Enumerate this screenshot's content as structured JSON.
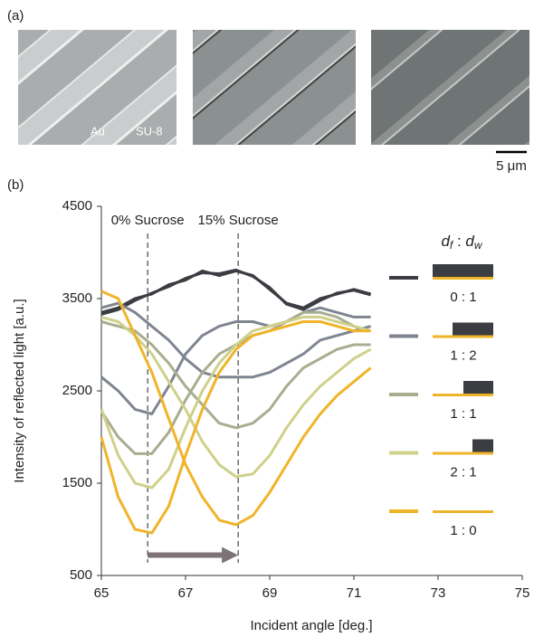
{
  "panel_labels": [
    "(a)",
    "(b)"
  ],
  "image_labels": [
    "Au",
    "SU-8"
  ],
  "scale_bar": "5 μm",
  "chart_data": {
    "type": "line",
    "xlabel": "Incident angle [deg.]",
    "ylabel": "Intensity of reflected light [a.u.]",
    "legend_title": [
      "d",
      "f",
      " : ",
      "d",
      "w"
    ],
    "annotations": [
      {
        "text": "0% Sucrose",
        "x": 66.1
      },
      {
        "text": "15% Sucrose",
        "x": 68.25
      }
    ],
    "arrow": {
      "from": 66.1,
      "to": 68.25,
      "y": 720,
      "color": "#7d7377"
    },
    "xlim": [
      65,
      75
    ],
    "xticks": [
      65,
      67,
      69,
      71,
      73,
      75
    ],
    "ylim": [
      500,
      4500
    ],
    "yticks": [
      500,
      1500,
      2500,
      3500,
      4500
    ],
    "x": [
      65,
      65.4,
      65.8,
      66.2,
      66.6,
      67.0,
      67.4,
      67.8,
      68.2,
      68.6,
      69.0,
      69.4,
      69.8,
      70.2,
      70.6,
      71.0,
      71.4
    ],
    "series": [
      {
        "name": "0 : 1",
        "color": "#3b3d42",
        "curves": [
          [
            3350,
            3400,
            3500,
            3550,
            3650,
            3700,
            3800,
            3750,
            3800,
            3750,
            3600,
            3450,
            3400,
            3500,
            3550,
            3600,
            3550
          ],
          [
            3330,
            3380,
            3480,
            3560,
            3630,
            3720,
            3780,
            3770,
            3810,
            3740,
            3620,
            3440,
            3380,
            3480,
            3560,
            3590,
            3540
          ]
        ]
      },
      {
        "name": "1 : 2",
        "color": "#7f8591",
        "curves": [
          [
            2650,
            2500,
            2300,
            2250,
            2550,
            2900,
            3100,
            3200,
            3250,
            3250,
            3200,
            3250,
            3350,
            3400,
            3350,
            3300,
            3300
          ],
          [
            3400,
            3450,
            3350,
            3200,
            3050,
            2850,
            2700,
            2650,
            2650,
            2650,
            2700,
            2800,
            2900,
            3050,
            3100,
            3150,
            3200
          ]
        ]
      },
      {
        "name": "1 : 1",
        "color": "#a9ad8f",
        "curves": [
          [
            2280,
            2000,
            1820,
            1820,
            2050,
            2400,
            2700,
            2900,
            3000,
            3100,
            3150,
            3250,
            3350,
            3350,
            3300,
            3200,
            3150
          ],
          [
            3250,
            3200,
            3150,
            3000,
            2800,
            2550,
            2350,
            2150,
            2100,
            2150,
            2300,
            2550,
            2750,
            2850,
            2950,
            3000,
            3000
          ]
        ]
      },
      {
        "name": "2 : 1",
        "color": "#cfd08a",
        "curves": [
          [
            2300,
            1800,
            1500,
            1450,
            1650,
            2100,
            2500,
            2800,
            3000,
            3150,
            3200,
            3250,
            3300,
            3300,
            3250,
            3200,
            3150
          ],
          [
            3300,
            3250,
            3100,
            2900,
            2600,
            2300,
            1950,
            1700,
            1570,
            1600,
            1800,
            2100,
            2350,
            2550,
            2700,
            2850,
            2950
          ]
        ]
      },
      {
        "name": "1 : 0",
        "color": "#f0b429",
        "curves": [
          [
            2000,
            1350,
            1000,
            960,
            1250,
            1800,
            2300,
            2700,
            2950,
            3100,
            3150,
            3200,
            3250,
            3250,
            3200,
            3150,
            3150
          ],
          [
            3580,
            3500,
            3100,
            2700,
            2200,
            1700,
            1350,
            1100,
            1050,
            1150,
            1400,
            1700,
            2000,
            2250,
            2450,
            2600,
            2750
          ]
        ]
      }
    ]
  }
}
